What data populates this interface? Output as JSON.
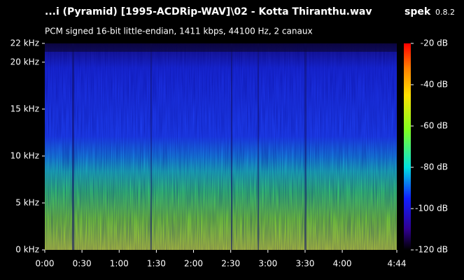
{
  "chart_data": {
    "type": "spectrogram",
    "title": "...i (Pyramid) [1995-ACDRip-WAV]\\02 - Kotta Thiranthu.wav",
    "app_name": "spek",
    "app_version": "0.8.2",
    "subtitle": "PCM signed 16-bit little-endian, 1411 kbps, 44100 Hz, 2 canaux",
    "xlim": [
      0,
      284
    ],
    "xticks": [
      {
        "value": 0,
        "label": "0:00"
      },
      {
        "value": 30,
        "label": "0:30"
      },
      {
        "value": 60,
        "label": "1:00"
      },
      {
        "value": 90,
        "label": "1:30"
      },
      {
        "value": 120,
        "label": "2:00"
      },
      {
        "value": 150,
        "label": "2:30"
      },
      {
        "value": 180,
        "label": "3:00"
      },
      {
        "value": 210,
        "label": "3:30"
      },
      {
        "value": 240,
        "label": "4:00"
      },
      {
        "value": 284,
        "label": "4:44"
      }
    ],
    "ylim": [
      0,
      22
    ],
    "yticks": [
      {
        "value": 0,
        "label": "0 kHz"
      },
      {
        "value": 5,
        "label": "5 kHz"
      },
      {
        "value": 10,
        "label": "10 kHz"
      },
      {
        "value": 15,
        "label": "15 kHz"
      },
      {
        "value": 20,
        "label": "20 kHz"
      },
      {
        "value": 22,
        "label": "22 kHz"
      }
    ],
    "zlim": [
      -120,
      -20
    ],
    "zticks": [
      {
        "value": -20,
        "label": "-20 dB"
      },
      {
        "value": -40,
        "label": "-40 dB"
      },
      {
        "value": -60,
        "label": "-60 dB"
      },
      {
        "value": -80,
        "label": "-80 dB"
      },
      {
        "value": -100,
        "label": "-100 dB"
      },
      {
        "value": -120,
        "label": "-120 dB"
      }
    ]
  }
}
